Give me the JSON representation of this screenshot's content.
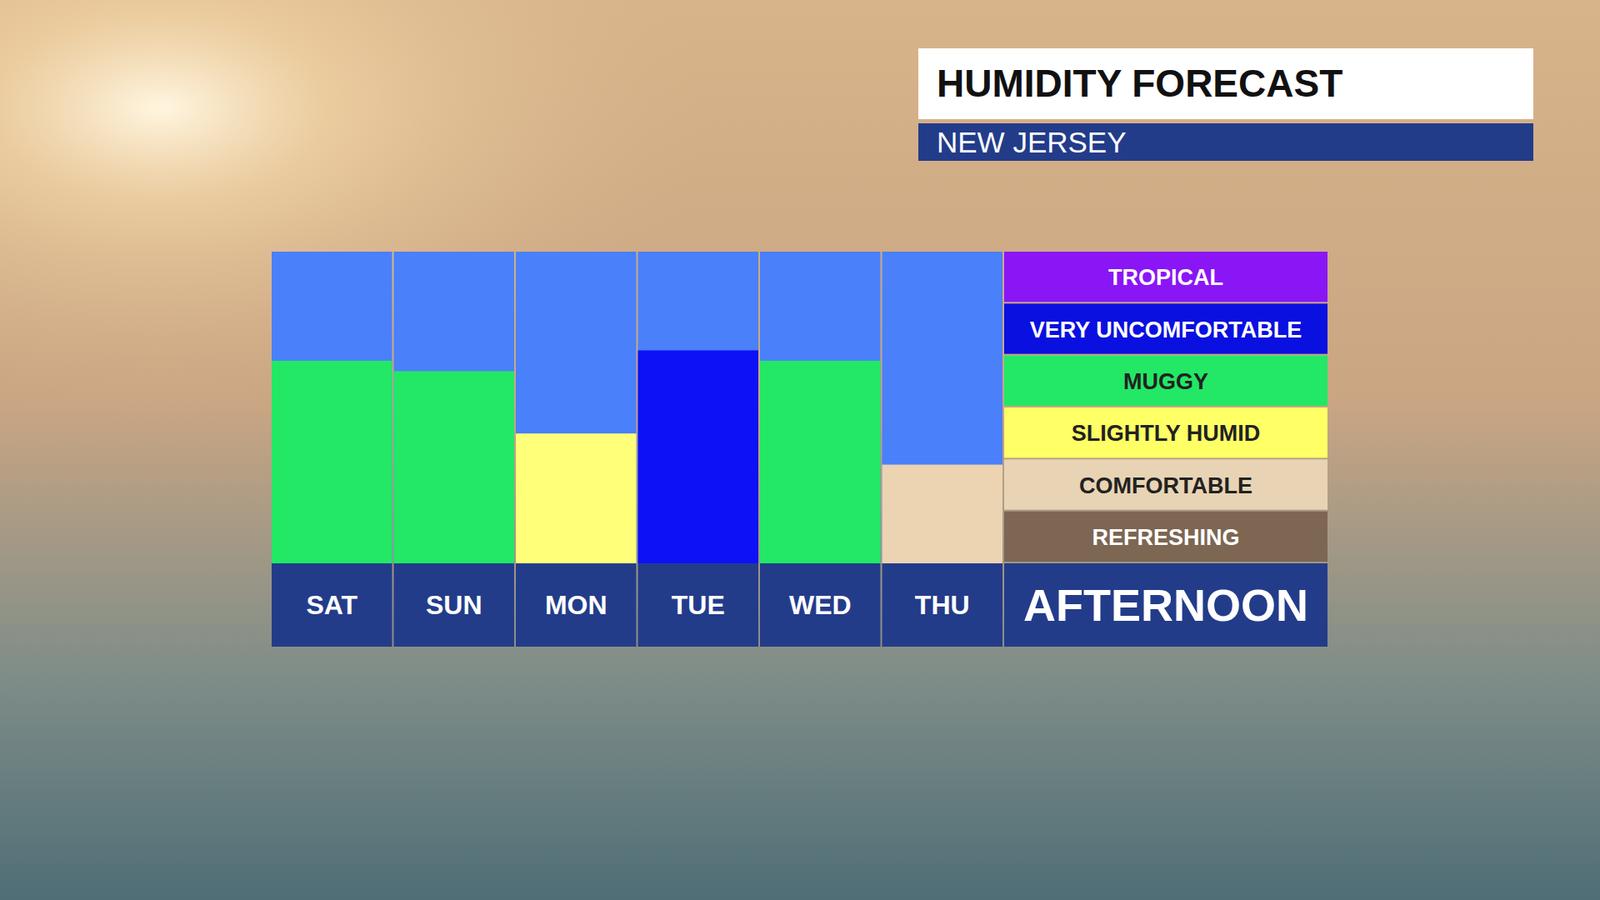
{
  "chart_data": {
    "type": "bar",
    "title": "HUMIDITY FORECAST",
    "subtitle": "NEW JERSEY",
    "xlabel": "AFTERNOON",
    "categories": [
      "SAT",
      "SUN",
      "MON",
      "TUE",
      "WED",
      "THU"
    ],
    "values": [
      3.9,
      3.7,
      2.5,
      4.1,
      3.9,
      1.9
    ],
    "colors": [
      "#22e865",
      "#22e865",
      "#ffff7a",
      "#0c12f5",
      "#22e865",
      "#ecd3b2"
    ],
    "ylim": [
      0,
      6
    ],
    "tick_labels": false,
    "levels": [
      {
        "name": "REFRESHING",
        "color": "#7d6652"
      },
      {
        "name": "COMFORTABLE",
        "color": "#e8d4b4"
      },
      {
        "name": "SLIGHTLY HUMID",
        "color": "#ffff66"
      },
      {
        "name": "MUGGY",
        "color": "#22e865"
      },
      {
        "name": "VERY UNCOMFORTABLE",
        "color": "#0a10e0"
      },
      {
        "name": "TROPICAL",
        "color": "#8a16f5"
      }
    ]
  }
}
